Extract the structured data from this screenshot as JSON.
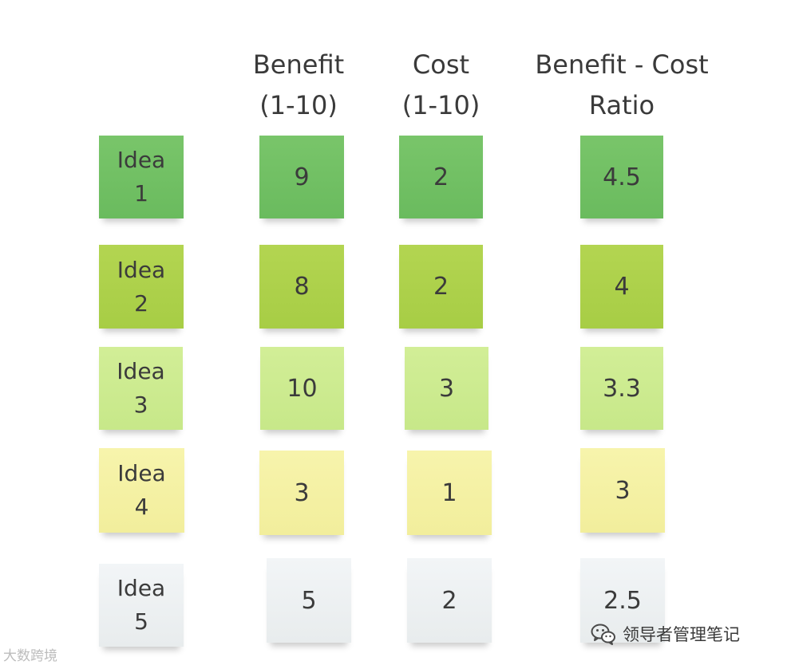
{
  "headers": {
    "benefit": [
      "Benefit",
      "(1-10)"
    ],
    "cost": [
      "Cost",
      "(1-10)"
    ],
    "ratio": [
      "Benefit - Cost",
      "Ratio"
    ]
  },
  "rows": [
    {
      "idea": [
        "Idea",
        "1"
      ],
      "benefit": "9",
      "cost": "2",
      "ratio": "4.5"
    },
    {
      "idea": [
        "Idea",
        "2"
      ],
      "benefit": "8",
      "cost": "2",
      "ratio": "4"
    },
    {
      "idea": [
        "Idea",
        "3"
      ],
      "benefit": "10",
      "cost": "3",
      "ratio": "3.3"
    },
    {
      "idea": [
        "Idea",
        "4"
      ],
      "benefit": "3",
      "cost": "1",
      "ratio": "3"
    },
    {
      "idea": [
        "Idea",
        "5"
      ],
      "benefit": "5",
      "cost": "2",
      "ratio": "2.5"
    }
  ],
  "colors": {
    "row_1": "#6fbf62",
    "row_2": "#abd049",
    "row_3": "#cbea8d",
    "row_4": "#f4f0a2",
    "row_5": "#edf1f3"
  },
  "watermarks": {
    "left": "大数跨境",
    "right": "领导者管理笔记",
    "right_icon": "wechat-icon"
  }
}
